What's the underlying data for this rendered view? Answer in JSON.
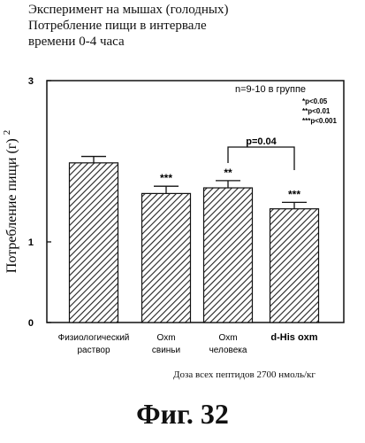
{
  "title_lines": [
    "Эксперимент на мышах (голодных)",
    "Потребление пищи в интервале",
    "времени 0-4 часа"
  ],
  "chart_data": {
    "type": "bar",
    "ylabel": "Потребление пищи (г)",
    "ylabel_sup": "2",
    "ylim": [
      0,
      3
    ],
    "y_ticks": [
      0,
      1,
      3
    ],
    "categories": [
      [
        "Физиологический",
        "раствор"
      ],
      [
        "Oxm",
        "свиньи"
      ],
      [
        "Oxm",
        "человека"
      ],
      [
        "d-His oxm"
      ]
    ],
    "values": [
      1.98,
      1.6,
      1.67,
      1.41
    ],
    "errors": [
      0.08,
      0.09,
      0.09,
      0.08
    ],
    "significance": [
      "",
      "***",
      "**",
      "***"
    ],
    "bracket": {
      "from": 2,
      "to": 3,
      "label": "p=0.04"
    },
    "group_note": "n=9-10 в группе",
    "legend_lines": [
      "*p<0.05",
      "**p<0.01",
      "***p<0.001"
    ],
    "bar_fill": "hatched",
    "grid": false
  },
  "dose_note": "Доза всех пептидов 2700 нмоль/кг",
  "figure_label": "Фиг. 32"
}
